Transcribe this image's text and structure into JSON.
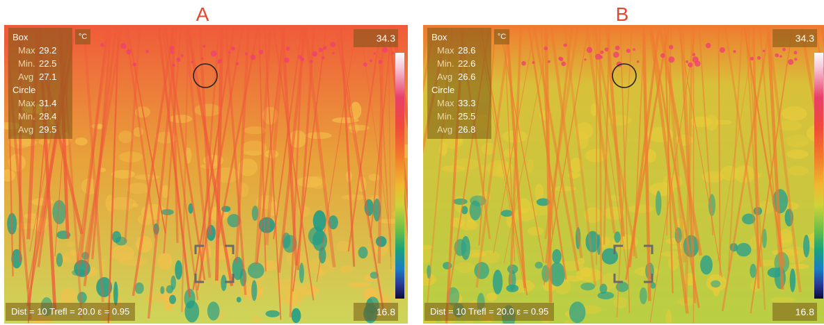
{
  "panels": [
    {
      "label": "A",
      "unit": "°C",
      "scale_max": "34.3",
      "scale_min": "16.8",
      "params": "Dist = 10  Trefl = 20.0  ε = 0.95",
      "box": {
        "title": "Box",
        "max_label": "Max",
        "max": "29.2",
        "min_label": "Min.",
        "min": "22.5",
        "avg_label": "Avg",
        "avg": "27.1"
      },
      "circle": {
        "title": "Circle",
        "max_label": "Max",
        "max": "31.4",
        "min_label": "Min.",
        "min": "28.4",
        "avg_label": "Avg",
        "avg": "29.5"
      },
      "palette": {
        "base": "#e8a23a",
        "hot": "#f05a3a",
        "warm": "#f4c04a",
        "cool": "#cdd65a",
        "cold": "#1c9c8a"
      }
    },
    {
      "label": "B",
      "unit": "°C",
      "scale_max": "34.3",
      "scale_min": "16.8",
      "params": "Dist = 10  Trefl = 20.0  ε = 0.95",
      "box": {
        "title": "Box",
        "max_label": "Max",
        "max": "28.6",
        "min_label": "Min.",
        "min": "22.6",
        "avg_label": "Avg",
        "avg": "26.6"
      },
      "circle": {
        "title": "Circle",
        "max_label": "Max",
        "max": "33.3",
        "min_label": "Min.",
        "min": "25.5",
        "avg_label": "Avg",
        "avg": "26.8"
      },
      "palette": {
        "base": "#d9c03a",
        "hot": "#f07a30",
        "warm": "#e8cc3a",
        "cool": "#b9cf44",
        "cold": "#2aa08a"
      }
    }
  ]
}
